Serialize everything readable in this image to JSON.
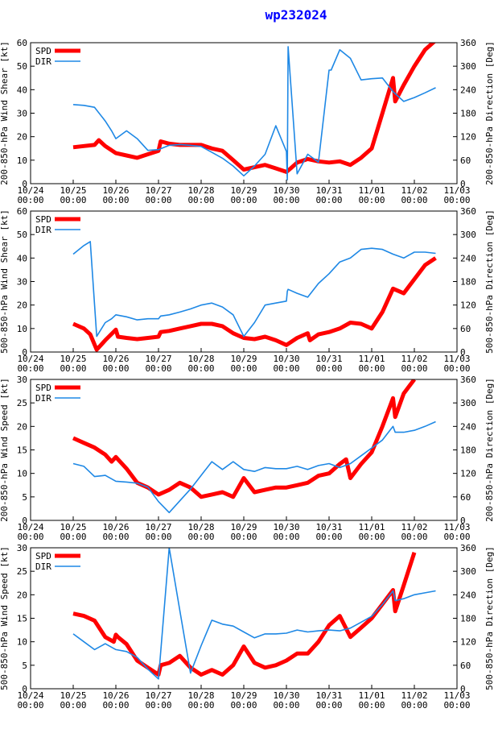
{
  "title": "wp232024",
  "colors": {
    "title": "#0000ff",
    "spd": "#ff0000",
    "dir": "#1e88e5",
    "axis": "#000000"
  },
  "x_dates": [
    "10/24",
    "10/25",
    "10/26",
    "10/27",
    "10/28",
    "10/29",
    "10/30",
    "10/31",
    "11/01",
    "11/02",
    "11/03"
  ],
  "x_time": "00:00",
  "legend": {
    "spd": "SPD",
    "dir": "DIR"
  },
  "chart_data": [
    {
      "type": "line",
      "title": "wp232024",
      "ylabel_left": "200-850-hPa Wind Shear [kt]",
      "ylabel_right": "200-850-hPa Direction [Deg]",
      "xlim_days": [
        0,
        10
      ],
      "ylim_left": [
        0,
        60
      ],
      "yticks_left": [
        0,
        10,
        20,
        30,
        40,
        50,
        60
      ],
      "ylim_right": [
        0,
        360
      ],
      "yticks_right": [
        0,
        60,
        120,
        180,
        240,
        300,
        360
      ],
      "series": [
        {
          "name": "SPD",
          "axis": "left",
          "x": [
            1.0,
            1.25,
            1.5,
            1.6,
            1.75,
            2.0,
            2.25,
            2.5,
            2.75,
            3.0,
            3.05,
            3.25,
            3.5,
            3.75,
            4.0,
            4.25,
            4.5,
            4.75,
            5.0,
            5.25,
            5.5,
            5.75,
            6.0,
            6.1,
            6.25,
            6.5,
            6.75,
            7.0,
            7.25,
            7.5,
            7.75,
            8.0,
            8.25,
            8.5,
            8.55,
            8.75,
            9.0,
            9.25,
            9.5
          ],
          "values": [
            15.5,
            16.0,
            16.5,
            18.5,
            16.0,
            13.0,
            12.0,
            11.0,
            12.5,
            14.0,
            18.0,
            17.0,
            16.5,
            16.5,
            16.5,
            15.0,
            14.0,
            10.0,
            6.0,
            7.0,
            8.0,
            6.5,
            5.0,
            6.5,
            9.0,
            10.5,
            9.5,
            9.0,
            9.5,
            8.0,
            11.0,
            15.0,
            30.0,
            45.0,
            35.0,
            42.0,
            50.0,
            57.0,
            61.0
          ]
        },
        {
          "name": "DIR",
          "axis": "right",
          "x": [
            1.0,
            1.25,
            1.5,
            1.75,
            1.9,
            2.0,
            2.25,
            2.5,
            2.75,
            3.0,
            3.25,
            3.5,
            3.75,
            4.0,
            4.25,
            4.5,
            4.75,
            5.0,
            5.25,
            5.5,
            5.75,
            6.0,
            6.02,
            6.04,
            6.25,
            6.5,
            6.75,
            7.0,
            7.05,
            7.25,
            7.5,
            7.75,
            8.0,
            8.25,
            8.5,
            8.75,
            9.0,
            9.25,
            9.5
          ],
          "values": [
            202,
            200,
            195,
            160,
            135,
            115,
            135,
            115,
            85,
            87,
            98,
            100,
            98,
            95,
            80,
            65,
            45,
            20,
            45,
            75,
            148,
            82,
            10,
            350,
            25,
            75,
            55,
            290,
            290,
            342,
            320,
            265,
            268,
            270,
            235,
            210,
            220,
            232,
            245
          ]
        }
      ]
    },
    {
      "type": "line",
      "ylabel_left": "500-850-hPa Wind Shear [kt]",
      "ylabel_right": "500-850-hPa Direction [Deg]",
      "xlim_days": [
        0,
        10
      ],
      "ylim_left": [
        0,
        60
      ],
      "yticks_left": [
        0,
        10,
        20,
        30,
        40,
        50,
        60
      ],
      "ylim_right": [
        0,
        360
      ],
      "yticks_right": [
        0,
        60,
        120,
        180,
        240,
        300,
        360
      ],
      "series": [
        {
          "name": "SPD",
          "axis": "left",
          "x": [
            1.0,
            1.25,
            1.4,
            1.55,
            1.75,
            2.0,
            2.05,
            2.25,
            2.5,
            2.75,
            3.0,
            3.05,
            3.25,
            3.5,
            3.75,
            4.0,
            4.25,
            4.5,
            4.75,
            5.0,
            5.25,
            5.5,
            5.75,
            6.0,
            6.25,
            6.5,
            6.55,
            6.75,
            7.0,
            7.25,
            7.5,
            7.75,
            8.0,
            8.25,
            8.5,
            8.75,
            9.0,
            9.25,
            9.5
          ],
          "values": [
            12.0,
            10.0,
            7.5,
            1.0,
            5.0,
            9.5,
            6.5,
            6.0,
            5.5,
            6.0,
            6.5,
            8.5,
            9.0,
            10.0,
            11.0,
            12.0,
            12.0,
            11.0,
            8.0,
            6.0,
            5.5,
            6.5,
            5.0,
            3.0,
            6.0,
            8.0,
            5.0,
            7.5,
            8.5,
            10.0,
            12.5,
            12.0,
            10.0,
            17.0,
            27.0,
            25.0,
            31.0,
            37.0,
            40.0
          ]
        },
        {
          "name": "DIR",
          "axis": "right",
          "x": [
            1.0,
            1.25,
            1.4,
            1.55,
            1.75,
            1.9,
            2.0,
            2.25,
            2.5,
            2.75,
            3.0,
            3.05,
            3.25,
            3.5,
            3.75,
            4.0,
            4.25,
            4.5,
            4.75,
            5.0,
            5.25,
            5.5,
            5.75,
            6.0,
            6.02,
            6.04,
            6.25,
            6.5,
            6.75,
            7.0,
            7.25,
            7.5,
            7.75,
            8.0,
            8.25,
            8.5,
            8.75,
            9.0,
            9.25,
            9.5
          ],
          "values": [
            250,
            272,
            282,
            40,
            75,
            85,
            95,
            90,
            82,
            85,
            85,
            92,
            95,
            102,
            110,
            120,
            125,
            115,
            95,
            40,
            75,
            120,
            125,
            130,
            155,
            160,
            150,
            140,
            175,
            200,
            230,
            240,
            262,
            265,
            262,
            250,
            240,
            255,
            255,
            252
          ]
        }
      ]
    },
    {
      "type": "line",
      "ylabel_left": "200-850-hPa Wind Speed [kt]",
      "ylabel_right": "200-850-hPa Direction [Deg]",
      "xlim_days": [
        0,
        10
      ],
      "ylim_left": [
        0,
        30
      ],
      "yticks_left": [
        0,
        5,
        10,
        15,
        20,
        25,
        30
      ],
      "ylim_right": [
        0,
        360
      ],
      "yticks_right": [
        0,
        60,
        120,
        180,
        240,
        300,
        360
      ],
      "series": [
        {
          "name": "SPD",
          "axis": "left",
          "x": [
            1.0,
            1.25,
            1.5,
            1.75,
            1.9,
            2.0,
            2.05,
            2.25,
            2.5,
            2.75,
            3.0,
            3.25,
            3.5,
            3.75,
            4.0,
            4.25,
            4.5,
            4.75,
            5.0,
            5.25,
            5.5,
            5.75,
            6.0,
            6.25,
            6.5,
            6.75,
            7.0,
            7.25,
            7.4,
            7.5,
            7.75,
            8.0,
            8.25,
            8.5,
            8.55,
            8.75,
            9.0
          ],
          "values": [
            17.5,
            16.5,
            15.5,
            14.0,
            12.5,
            13.5,
            13.0,
            11.0,
            8.0,
            7.0,
            5.5,
            6.5,
            8.0,
            7.0,
            5.0,
            5.5,
            6.0,
            5.0,
            9.0,
            6.0,
            6.5,
            7.0,
            7.0,
            7.5,
            8.0,
            9.5,
            10.0,
            12.0,
            13.0,
            9.0,
            12.0,
            14.5,
            20.0,
            26.0,
            22.0,
            27.0,
            30.0
          ]
        },
        {
          "name": "DIR",
          "axis": "right",
          "x": [
            1.0,
            1.25,
            1.5,
            1.75,
            2.0,
            2.25,
            2.5,
            2.75,
            3.0,
            3.25,
            3.5,
            3.75,
            4.0,
            4.25,
            4.5,
            4.75,
            5.0,
            5.25,
            5.5,
            5.75,
            6.0,
            6.25,
            6.5,
            6.75,
            7.0,
            7.25,
            7.5,
            7.75,
            8.0,
            8.25,
            8.5,
            8.55,
            8.75,
            9.0,
            9.25,
            9.5
          ],
          "values": [
            145,
            138,
            112,
            115,
            100,
            98,
            95,
            85,
            48,
            20,
            50,
            80,
            115,
            150,
            130,
            150,
            130,
            125,
            135,
            132,
            132,
            138,
            130,
            140,
            145,
            135,
            145,
            165,
            185,
            205,
            240,
            225,
            225,
            230,
            240,
            252
          ]
        }
      ]
    },
    {
      "type": "line",
      "ylabel_left": "500-850-hPa Wind Speed [kt]",
      "ylabel_right": "500-850-hPa Direction [Deg]",
      "xlim_days": [
        0,
        10
      ],
      "ylim_left": [
        0,
        30
      ],
      "yticks_left": [
        0,
        5,
        10,
        15,
        20,
        25,
        30
      ],
      "ylim_right": [
        0,
        360
      ],
      "yticks_right": [
        0,
        60,
        120,
        180,
        240,
        300,
        360
      ],
      "series": [
        {
          "name": "SPD",
          "axis": "left",
          "x": [
            1.0,
            1.25,
            1.5,
            1.75,
            1.95,
            2.0,
            2.05,
            2.25,
            2.5,
            2.75,
            3.0,
            3.05,
            3.25,
            3.5,
            3.75,
            4.0,
            4.25,
            4.5,
            4.75,
            5.0,
            5.25,
            5.5,
            5.75,
            6.0,
            6.25,
            6.5,
            6.75,
            7.0,
            7.25,
            7.5,
            7.75,
            8.0,
            8.25,
            8.5,
            8.55,
            8.75,
            9.0
          ],
          "values": [
            16.0,
            15.5,
            14.5,
            11.0,
            10.0,
            11.5,
            11.0,
            9.5,
            6.0,
            4.5,
            3.0,
            5.0,
            5.5,
            7.0,
            4.5,
            3.0,
            4.0,
            3.0,
            5.0,
            9.0,
            5.5,
            4.5,
            5.0,
            6.0,
            7.5,
            7.5,
            10.0,
            13.5,
            15.5,
            11.0,
            13.0,
            15.0,
            18.0,
            21.0,
            16.5,
            22.0,
            29.0
          ]
        },
        {
          "name": "DIR",
          "axis": "right",
          "x": [
            1.0,
            1.25,
            1.5,
            1.75,
            2.0,
            2.25,
            2.5,
            2.75,
            3.0,
            3.25,
            3.5,
            3.75,
            4.0,
            4.25,
            4.5,
            4.75,
            5.0,
            5.25,
            5.5,
            5.75,
            6.0,
            6.25,
            6.5,
            6.75,
            7.0,
            7.25,
            7.5,
            7.75,
            8.0,
            8.25,
            8.5,
            8.55,
            8.75,
            9.0,
            9.25,
            9.5
          ],
          "values": [
            140,
            120,
            100,
            115,
            100,
            95,
            80,
            50,
            25,
            360,
            200,
            40,
            110,
            175,
            165,
            160,
            145,
            130,
            140,
            140,
            142,
            150,
            145,
            148,
            150,
            148,
            155,
            170,
            185,
            215,
            250,
            225,
            230,
            240,
            245,
            250
          ]
        }
      ]
    }
  ]
}
